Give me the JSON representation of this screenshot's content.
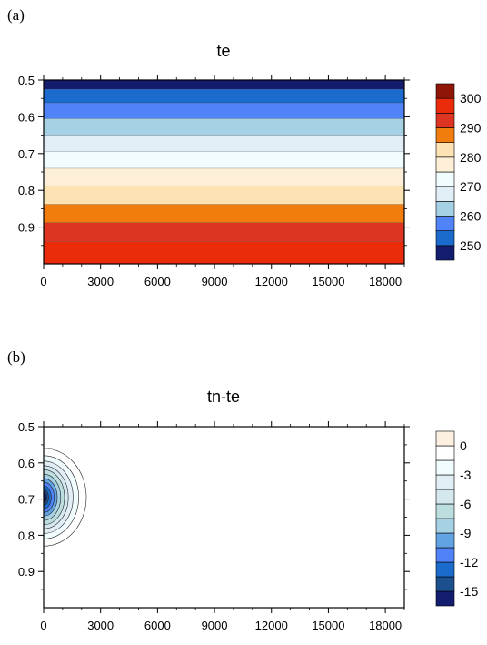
{
  "chart_data": [
    {
      "type": "heatmap",
      "panel_label": "(a)",
      "title": "te",
      "xlabel": "",
      "ylabel": "",
      "xlim": [
        0,
        19000
      ],
      "ylim": [
        0.5,
        1.0
      ],
      "y_inverted": true,
      "x_ticks": [
        "0",
        "3000",
        "6000",
        "9000",
        "12000",
        "15000",
        "18000"
      ],
      "x_tick_values": [
        0,
        3000,
        6000,
        9000,
        12000,
        15000,
        18000
      ],
      "y_ticks": [
        "0.5",
        "0.6",
        "0.7",
        "0.8",
        "0.9"
      ],
      "y_tick_values": [
        0.5,
        0.6,
        0.7,
        0.8,
        0.9
      ],
      "colorbar": {
        "colors": [
          "#141c6e",
          "#1a6bcc",
          "#5082f8",
          "#a6d0e3",
          "#e2eef6",
          "#f1fcfe",
          "#fdefd8",
          "#fde2b3",
          "#f07d0e",
          "#de3523",
          "#ea2c0b",
          "#8f1506"
        ],
        "labels": [
          "250",
          "260",
          "270",
          "280",
          "290",
          "300"
        ]
      },
      "bands": [
        {
          "y_top": 0.5,
          "y_bottom": 0.525,
          "color": "#141c6e"
        },
        {
          "y_top": 0.525,
          "y_bottom": 0.562,
          "color": "#1a6bcc"
        },
        {
          "y_top": 0.562,
          "y_bottom": 0.605,
          "color": "#5082f8"
        },
        {
          "y_top": 0.605,
          "y_bottom": 0.65,
          "color": "#a6d0e3"
        },
        {
          "y_top": 0.65,
          "y_bottom": 0.694,
          "color": "#e2eef6"
        },
        {
          "y_top": 0.694,
          "y_bottom": 0.74,
          "color": "#f1fcfe"
        },
        {
          "y_top": 0.74,
          "y_bottom": 0.788,
          "color": "#fdefd8"
        },
        {
          "y_top": 0.788,
          "y_bottom": 0.838,
          "color": "#fde2b3"
        },
        {
          "y_top": 0.838,
          "y_bottom": 0.888,
          "color": "#f07d0e"
        },
        {
          "y_top": 0.888,
          "y_bottom": 0.94,
          "color": "#de3523"
        },
        {
          "y_top": 0.94,
          "y_bottom": 1.0,
          "color": "#ea2c0b"
        }
      ]
    },
    {
      "type": "heatmap",
      "panel_label": "(b)",
      "title": "tn-te",
      "xlabel": "",
      "ylabel": "",
      "xlim": [
        0,
        19000
      ],
      "ylim": [
        0.5,
        1.0
      ],
      "y_inverted": true,
      "x_ticks": [
        "0",
        "3000",
        "6000",
        "9000",
        "12000",
        "15000",
        "18000"
      ],
      "x_tick_values": [
        0,
        3000,
        6000,
        9000,
        12000,
        15000,
        18000
      ],
      "y_ticks": [
        "0.5",
        "0.6",
        "0.7",
        "0.8",
        "0.9"
      ],
      "y_tick_values": [
        0.5,
        0.6,
        0.7,
        0.8,
        0.9
      ],
      "colorbar": {
        "colors": [
          "#141c6e",
          "#1c4f8e",
          "#1a6bcc",
          "#5082f8",
          "#62a3e3",
          "#a6d0e3",
          "#bcdede",
          "#d4e8ee",
          "#e2eef6",
          "#f1fcfe",
          "#ffffff",
          "#fcf0e0"
        ],
        "labels": [
          "-15",
          "-12",
          "-9",
          "-6",
          "-3",
          "0"
        ]
      },
      "anomaly": {
        "center_x": 0,
        "center_y": 0.695,
        "contours": [
          {
            "level": -1,
            "rx": 2250,
            "ry": 0.135,
            "color": "#ffffff"
          },
          {
            "level": -2,
            "rx": 1850,
            "ry": 0.115,
            "color": "#f1fcfe"
          },
          {
            "level": -3,
            "rx": 1550,
            "ry": 0.1,
            "color": "#e2eef6"
          },
          {
            "level": -4,
            "rx": 1300,
            "ry": 0.087,
            "color": "#d4e8ee"
          },
          {
            "level": -5,
            "rx": 1100,
            "ry": 0.076,
            "color": "#bcdede"
          },
          {
            "level": -7,
            "rx": 900,
            "ry": 0.064,
            "color": "#a6d0e3"
          },
          {
            "level": -9,
            "rx": 720,
            "ry": 0.052,
            "color": "#62a3e3"
          },
          {
            "level": -11,
            "rx": 560,
            "ry": 0.042,
            "color": "#5082f8"
          },
          {
            "level": -13,
            "rx": 400,
            "ry": 0.032,
            "color": "#1a6bcc"
          },
          {
            "level": -14,
            "rx": 260,
            "ry": 0.022,
            "color": "#1c4f8e"
          },
          {
            "level": -15,
            "rx": 160,
            "ry": 0.015,
            "color": "#141c6e"
          }
        ]
      }
    }
  ]
}
